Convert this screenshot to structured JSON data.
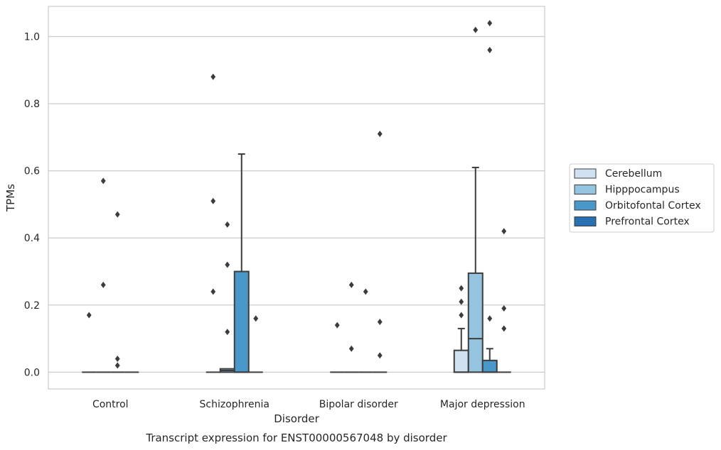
{
  "chart_data": {
    "type": "box",
    "title": "",
    "caption": "Transcript expression for ENST00000567048 by disorder",
    "xlabel": "Disorder",
    "ylabel": "TPMs",
    "ylim": [
      -0.05,
      1.09
    ],
    "yticks": [
      "0.0",
      "0.2",
      "0.4",
      "0.6",
      "0.8",
      "1.0"
    ],
    "categories": [
      "Control",
      "Schizophrenia",
      "Bipolar disorder",
      "Major depression"
    ],
    "grid": "horizontal",
    "legend_position": "right",
    "series": [
      {
        "name": "Cerebellum",
        "color": "#d0e1f2",
        "boxes": [
          {
            "low": 0,
            "q1": 0,
            "median": 0,
            "q3": 0,
            "high": 0,
            "outliers": [
              0.17
            ]
          },
          {
            "low": 0,
            "q1": 0,
            "median": 0,
            "q3": 0,
            "high": 0,
            "outliers": [
              0.51,
              0.24,
              0.88
            ]
          },
          {
            "low": 0,
            "q1": 0,
            "median": 0,
            "q3": 0,
            "high": 0,
            "outliers": [
              0.14
            ]
          },
          {
            "low": 0,
            "q1": 0,
            "median": 0,
            "q3": 0.065,
            "high": 0.13,
            "outliers": [
              0.25,
              0.21,
              0.17
            ]
          }
        ]
      },
      {
        "name": "Hipppocampus",
        "color": "#94c4df",
        "boxes": [
          {
            "low": 0,
            "q1": 0,
            "median": 0,
            "q3": 0,
            "high": 0,
            "outliers": [
              0.57,
              0.26
            ]
          },
          {
            "low": 0,
            "q1": 0,
            "median": 0.005,
            "q3": 0.01,
            "high": 0.01,
            "outliers": [
              0.44,
              0.32,
              0.12
            ]
          },
          {
            "low": 0,
            "q1": 0,
            "median": 0,
            "q3": 0,
            "high": 0,
            "outliers": [
              0.26,
              0.07
            ]
          },
          {
            "low": 0,
            "q1": 0,
            "median": 0.1,
            "q3": 0.295,
            "high": 0.61,
            "outliers": [
              1.02
            ]
          }
        ]
      },
      {
        "name": "Orbitofontal Cortex",
        "color": "#4a98c9",
        "boxes": [
          {
            "low": 0,
            "q1": 0,
            "median": 0,
            "q3": 0,
            "high": 0,
            "outliers": [
              0.47,
              0.04,
              0.02
            ]
          },
          {
            "low": 0,
            "q1": 0,
            "median": 0,
            "q3": 0.3,
            "high": 0.65,
            "outliers": []
          },
          {
            "low": 0,
            "q1": 0,
            "median": 0,
            "q3": 0,
            "high": 0,
            "outliers": [
              0.24
            ]
          },
          {
            "low": 0,
            "q1": 0,
            "median": 0,
            "q3": 0.035,
            "high": 0.07,
            "outliers": [
              1.04,
              0.96,
              0.16
            ]
          }
        ]
      },
      {
        "name": "Prefrontal Cortex",
        "color": "#2870b1",
        "boxes": [
          {
            "low": 0,
            "q1": 0,
            "median": 0,
            "q3": 0,
            "high": 0,
            "outliers": []
          },
          {
            "low": 0,
            "q1": 0,
            "median": 0,
            "q3": 0,
            "high": 0,
            "outliers": [
              0.16
            ]
          },
          {
            "low": 0,
            "q1": 0,
            "median": 0,
            "q3": 0,
            "high": 0,
            "outliers": [
              0.71,
              0.15,
              0.05
            ]
          },
          {
            "low": 0,
            "q1": 0,
            "median": 0,
            "q3": 0,
            "high": 0,
            "outliers": [
              0.42,
              0.19,
              0.13
            ]
          }
        ]
      }
    ]
  }
}
